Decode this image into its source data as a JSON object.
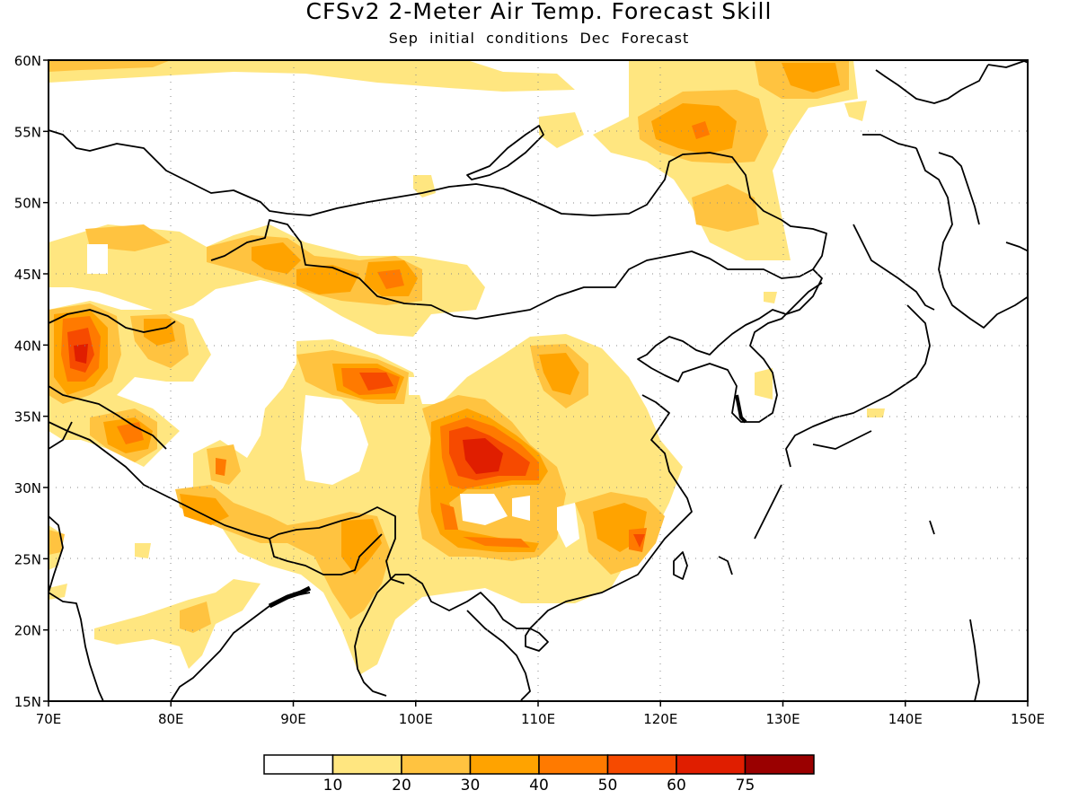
{
  "title": "CFSv2 2-Meter Air Temp. Forecast Skill",
  "subtitle": "Sep initial conditions  Dec Forecast",
  "map": {
    "lon_range": [
      70,
      150
    ],
    "lat_range": [
      15,
      60
    ],
    "lon_ticks": [
      "70E",
      "80E",
      "90E",
      "100E",
      "110E",
      "120E",
      "130E",
      "140E",
      "150E"
    ],
    "lat_ticks": [
      "15N",
      "20N",
      "25N",
      "30N",
      "35N",
      "40N",
      "45N",
      "50N",
      "55N",
      "60N"
    ],
    "gridlines": "dotted"
  },
  "colorbar": {
    "colors": [
      "#ffffff",
      "#ffe680",
      "#ffc340",
      "#ffa300",
      "#ff7a00",
      "#f64a00",
      "#e01e00",
      "#9a0000"
    ],
    "labels": [
      "10",
      "20",
      "30",
      "40",
      "50",
      "60",
      "75"
    ]
  }
}
